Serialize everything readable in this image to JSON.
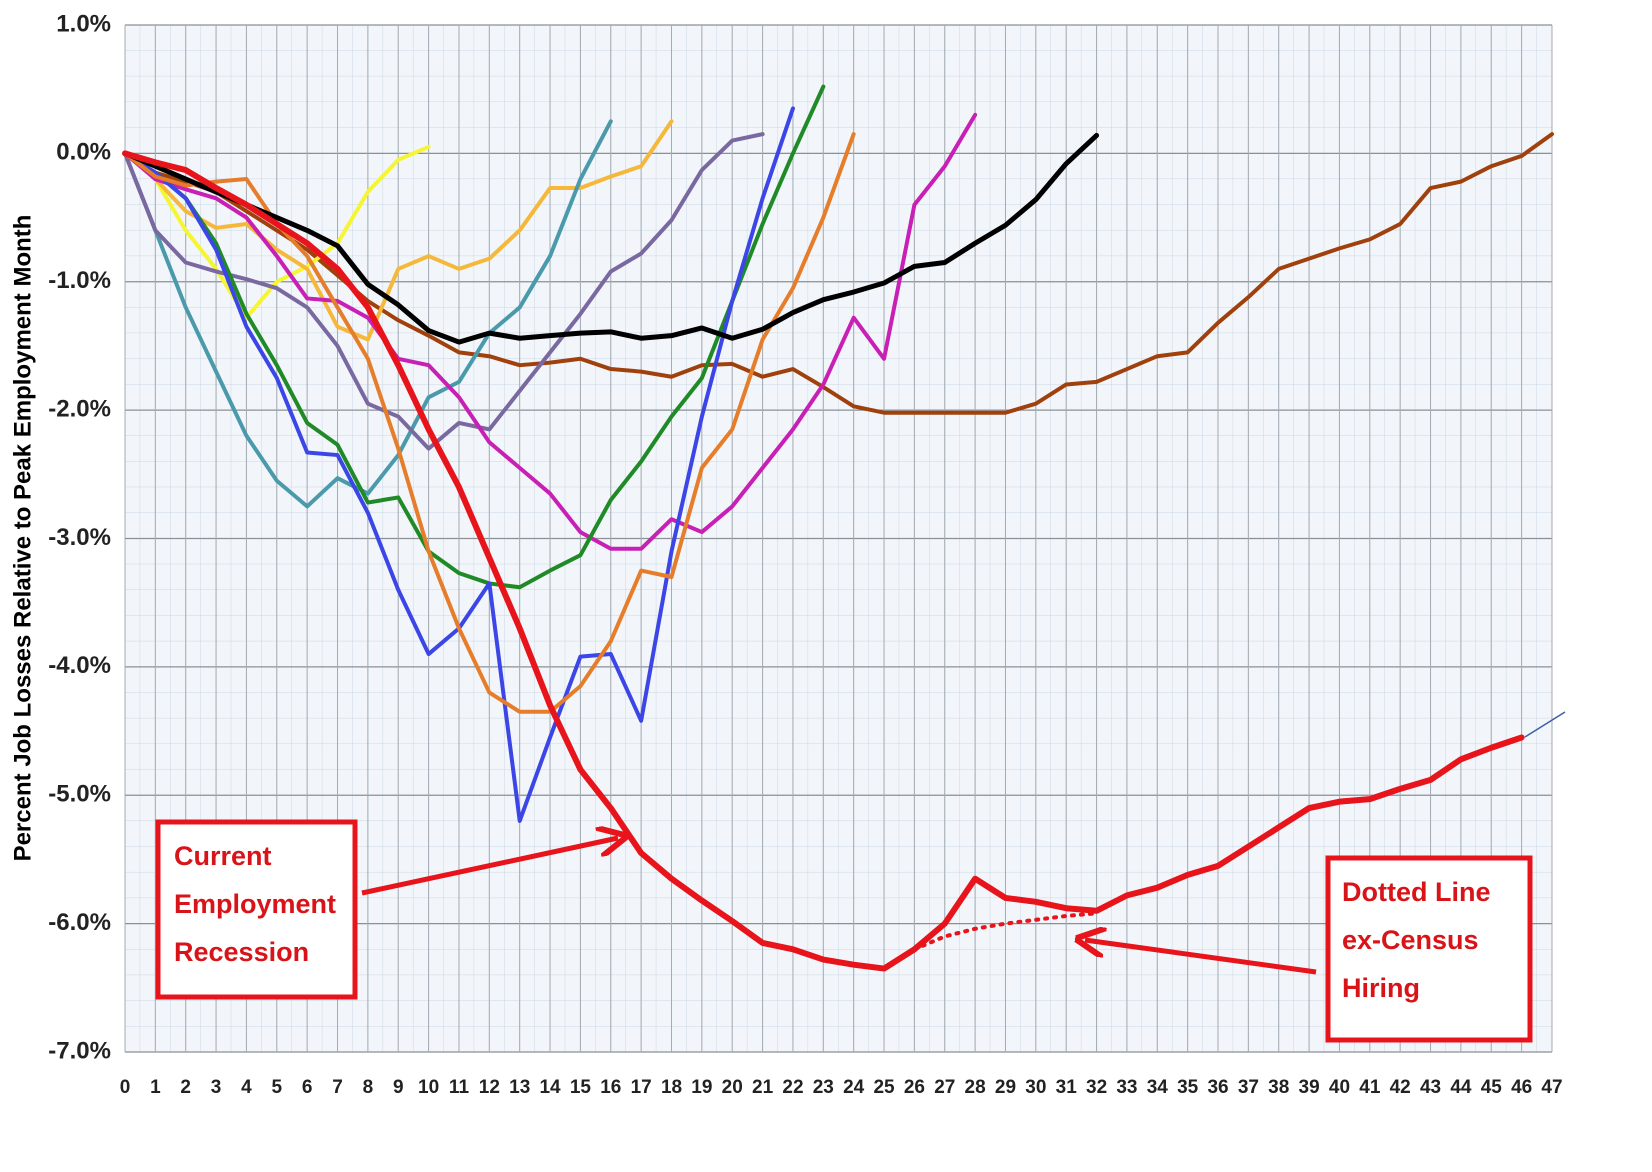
{
  "chart_data": {
    "type": "line",
    "y_label": "Percent Job Losses Relative to Peak Employment Month",
    "x": [
      0,
      1,
      2,
      3,
      4,
      5,
      6,
      7,
      8,
      9,
      10,
      11,
      12,
      13,
      14,
      15,
      16,
      17,
      18,
      19,
      20,
      21,
      22,
      23,
      24,
      25,
      26,
      27,
      28,
      29,
      30,
      31,
      32,
      33,
      34,
      35,
      36,
      37,
      38,
      39,
      40,
      41,
      42,
      43,
      44,
      45,
      46,
      47
    ],
    "xlim": [
      0,
      47
    ],
    "xticks": [
      0,
      1,
      2,
      3,
      4,
      5,
      6,
      7,
      8,
      9,
      10,
      11,
      12,
      13,
      14,
      15,
      16,
      17,
      18,
      19,
      20,
      21,
      22,
      23,
      24,
      25,
      26,
      27,
      28,
      29,
      30,
      31,
      32,
      33,
      34,
      35,
      36,
      37,
      38,
      39,
      40,
      41,
      42,
      43,
      44,
      45,
      46,
      47
    ],
    "ylim": [
      -7,
      1
    ],
    "yticks": [
      {
        "value": 1,
        "label": "1.0%"
      },
      {
        "value": 0,
        "label": "0.0%"
      },
      {
        "value": -1,
        "label": "-1.0%"
      },
      {
        "value": -2,
        "label": "-2.0%"
      },
      {
        "value": -3,
        "label": "-3.0%"
      },
      {
        "value": -4,
        "label": "-4.0%"
      },
      {
        "value": -5,
        "label": "-5.0%"
      },
      {
        "value": -6,
        "label": "-6.0%"
      },
      {
        "value": -7,
        "label": "-7.0%"
      }
    ],
    "grid": true,
    "series": [
      {
        "color": "#a0410d",
        "values": [
          0,
          -0.15,
          -0.22,
          -0.3,
          -0.45,
          -0.6,
          -0.75,
          -0.95,
          -1.15,
          -1.3,
          -1.42,
          -1.55,
          -1.58,
          -1.65,
          -1.63,
          -1.6,
          -1.68,
          -1.7,
          -1.74,
          -1.65,
          -1.64,
          -1.74,
          -1.68,
          -1.82,
          -1.97,
          -2.02,
          -2.02,
          -2.02,
          -2.02,
          -2.02,
          -1.95,
          -1.8,
          -1.78,
          -1.68,
          -1.58,
          -1.55,
          -1.32,
          -1.12,
          -0.9,
          -0.82,
          -0.74,
          -0.67,
          -0.55,
          -0.27,
          -0.22,
          -0.1,
          -0.02,
          0.15
        ]
      },
      {
        "color": "#f5f532",
        "values": [
          0,
          -0.2,
          -0.6,
          -0.9,
          -1.28,
          -1.0,
          -0.88,
          -0.7,
          -0.3,
          -0.05,
          0.05,
          null,
          null,
          null,
          null,
          null,
          null,
          null,
          null,
          null,
          null,
          null,
          null,
          null,
          null,
          null,
          null,
          null,
          null,
          null,
          null,
          null,
          null,
          null,
          null,
          null,
          null,
          null,
          null,
          null,
          null,
          null,
          null,
          null,
          null,
          null,
          null,
          null
        ]
      },
      {
        "color": "#f5b83a",
        "values": [
          0,
          -0.2,
          -0.45,
          -0.58,
          -0.55,
          -0.75,
          -0.9,
          -1.35,
          -1.45,
          -0.9,
          -0.8,
          -0.9,
          -0.82,
          -0.6,
          -0.27,
          -0.27,
          -0.18,
          -0.1,
          0.25,
          null,
          null,
          null,
          null,
          null,
          null,
          null,
          null,
          null,
          null,
          null,
          null,
          null,
          null,
          null,
          null,
          null,
          null,
          null,
          null,
          null,
          null,
          null,
          null,
          null,
          null,
          null,
          null,
          null
        ]
      },
      {
        "color": "#4a9aab",
        "values": [
          0,
          -0.6,
          -1.2,
          -1.7,
          -2.2,
          -2.55,
          -2.75,
          -2.53,
          -2.65,
          -2.35,
          -1.9,
          -1.78,
          -1.4,
          -1.2,
          -0.8,
          -0.2,
          0.25,
          null,
          null,
          null,
          null,
          null,
          null,
          null,
          null,
          null,
          null,
          null,
          null,
          null,
          null,
          null,
          null,
          null,
          null,
          null,
          null,
          null,
          null,
          null,
          null,
          null,
          null,
          null,
          null,
          null,
          null,
          null
        ]
      },
      {
        "color": "#7a68a0",
        "values": [
          0,
          -0.6,
          -0.85,
          -0.92,
          -0.98,
          -1.05,
          -1.2,
          -1.5,
          -1.95,
          -2.05,
          -2.3,
          -2.1,
          -2.15,
          -1.85,
          -1.55,
          -1.25,
          -0.92,
          -0.78,
          -0.52,
          -0.13,
          0.1,
          0.15,
          null,
          null,
          null,
          null,
          null,
          null,
          null,
          null,
          null,
          null,
          null,
          null,
          null,
          null,
          null,
          null,
          null,
          null,
          null,
          null,
          null,
          null,
          null,
          null,
          null,
          null
        ]
      },
      {
        "color": "#c81fb4",
        "values": [
          0,
          -0.2,
          -0.28,
          -0.35,
          -0.5,
          -0.8,
          -1.13,
          -1.15,
          -1.28,
          -1.6,
          -1.65,
          -1.9,
          -2.25,
          -2.45,
          -2.65,
          -2.95,
          -3.08,
          -3.08,
          -2.85,
          -2.95,
          -2.75,
          -2.45,
          -2.15,
          -1.8,
          -1.28,
          -1.6,
          -0.4,
          -0.1,
          0.3,
          null,
          null,
          null,
          null,
          null,
          null,
          null,
          null,
          null,
          null,
          null,
          null,
          null,
          null,
          null,
          null,
          null,
          null,
          null
        ]
      },
      {
        "color": "#1f8a26",
        "values": [
          0,
          -0.15,
          -0.35,
          -0.7,
          -1.25,
          -1.65,
          -2.1,
          -2.27,
          -2.72,
          -2.68,
          -3.1,
          -3.27,
          -3.35,
          -3.38,
          -3.25,
          -3.13,
          -2.7,
          -2.4,
          -2.05,
          -1.75,
          -1.15,
          -0.55,
          0.0,
          0.52,
          null,
          null,
          null,
          null,
          null,
          null,
          null,
          null,
          null,
          null,
          null,
          null,
          null,
          null,
          null,
          null,
          null,
          null,
          null,
          null,
          null,
          null,
          null,
          null
        ]
      },
      {
        "color": "#3c46e6",
        "values": [
          0,
          -0.15,
          -0.35,
          -0.75,
          -1.35,
          -1.75,
          -2.33,
          -2.35,
          -2.8,
          -3.4,
          -3.9,
          -3.7,
          -3.35,
          -5.2,
          -4.55,
          -3.92,
          -3.9,
          -4.42,
          -3.1,
          -2.05,
          -1.15,
          -0.35,
          0.35,
          null,
          null,
          null,
          null,
          null,
          null,
          null,
          null,
          null,
          null,
          null,
          null,
          null,
          null,
          null,
          null,
          null,
          null,
          null,
          null,
          null,
          null,
          null,
          null,
          null
        ]
      },
      {
        "color": "#e67d2a",
        "values": [
          0,
          -0.18,
          -0.25,
          -0.22,
          -0.2,
          -0.55,
          -0.8,
          -1.2,
          -1.6,
          -2.3,
          -3.1,
          -3.7,
          -4.2,
          -4.35,
          -4.35,
          -4.15,
          -3.8,
          -3.25,
          -3.3,
          -2.45,
          -2.15,
          -1.45,
          -1.05,
          -0.5,
          0.15,
          null,
          null,
          null,
          null,
          null,
          null,
          null,
          null,
          null,
          null,
          null,
          null,
          null,
          null,
          null,
          null,
          null,
          null,
          null,
          null,
          null,
          null,
          null
        ]
      },
      {
        "color": "#000000",
        "values": [
          0,
          -0.1,
          -0.2,
          -0.3,
          -0.4,
          -0.5,
          -0.6,
          -0.72,
          -1.02,
          -1.18,
          -1.38,
          -1.47,
          -1.4,
          -1.44,
          -1.42,
          -1.4,
          -1.39,
          -1.44,
          -1.42,
          -1.36,
          -1.44,
          -1.37,
          -1.24,
          -1.14,
          -1.08,
          -1.01,
          -0.88,
          -0.85,
          -0.7,
          -0.56,
          -0.36,
          -0.08,
          0.14,
          null,
          null,
          null,
          null,
          null,
          null,
          null,
          null,
          null,
          null,
          null,
          null,
          null,
          null,
          null
        ]
      },
      {
        "color": "#e8141b",
        "dash": "dotted",
        "values": [
          null,
          null,
          null,
          null,
          null,
          null,
          null,
          null,
          null,
          null,
          null,
          null,
          null,
          null,
          null,
          null,
          null,
          null,
          null,
          null,
          null,
          null,
          null,
          null,
          null,
          -6.35,
          -6.2,
          -6.1,
          -6.04,
          -6.0,
          -5.97,
          -5.94,
          -5.92,
          null,
          null,
          null,
          null,
          null,
          null,
          null,
          null,
          null,
          null,
          null,
          null,
          null,
          null,
          null
        ]
      },
      {
        "color": "#e8141b",
        "values": [
          0,
          -0.07,
          -0.13,
          -0.27,
          -0.4,
          -0.55,
          -0.7,
          -0.9,
          -1.2,
          -1.65,
          -2.15,
          -2.6,
          -3.15,
          -3.7,
          -4.3,
          -4.8,
          -5.1,
          -5.45,
          -5.65,
          -5.82,
          -5.98,
          -6.15,
          -6.2,
          -6.28,
          -6.32,
          -6.35,
          -6.2,
          -6.0,
          -5.65,
          -5.8,
          -5.83,
          -5.88,
          -5.9,
          -5.78,
          -5.72,
          -5.62,
          -5.55,
          -5.4,
          -5.25,
          -5.1,
          -5.05,
          -5.03,
          -4.95,
          -4.88,
          -4.72,
          -4.63,
          -4.55,
          null
        ]
      }
    ],
    "annotations": [
      {
        "lines": [
          "Current",
          "Employment",
          "Recession"
        ]
      },
      {
        "lines": [
          "Dotted Line",
          "ex-Census",
          "Hiring"
        ]
      }
    ]
  }
}
